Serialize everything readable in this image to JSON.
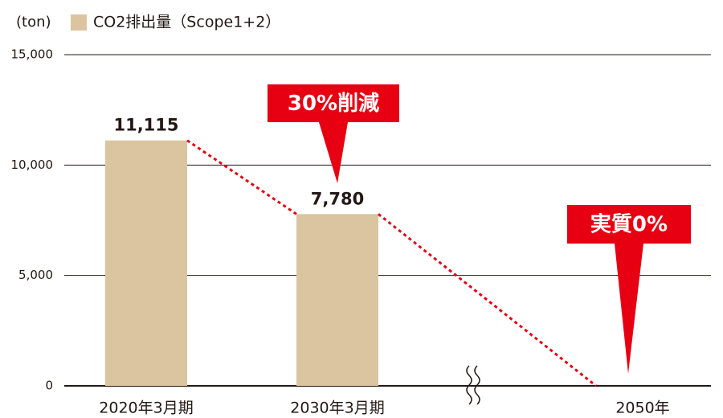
{
  "chart_data": {
    "type": "bar",
    "unit_label": "(ton)",
    "categories": [
      "2020年3月期",
      "2030年3月期",
      "2050年"
    ],
    "series": [
      {
        "name": "CO2排出量（Scope1+2）",
        "color": "#dbc5a0",
        "values": [
          11115,
          7780,
          0
        ],
        "value_labels": [
          "11,115",
          "7,780",
          null
        ]
      }
    ],
    "ylim": [
      0,
      15000
    ],
    "yticks": [
      0,
      {
        "value": 5000,
        "label": "5,000"
      },
      {
        "value": 10000,
        "label": "10,000"
      },
      {
        "value": 15000,
        "label": "15,000"
      }
    ],
    "grid": true,
    "line_color": "#e60012",
    "annotations": [
      "30%削減",
      "実質0%"
    ]
  }
}
